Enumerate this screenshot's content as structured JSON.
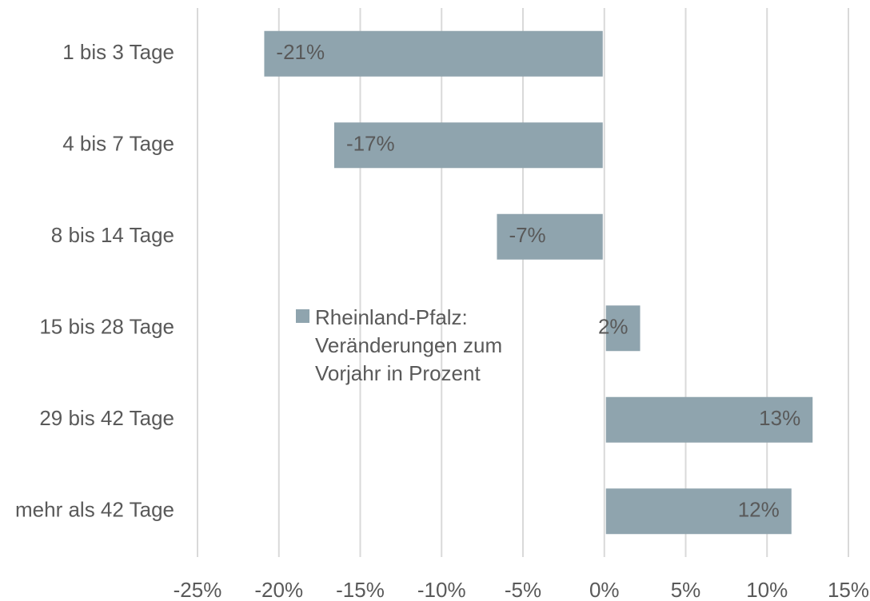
{
  "chart_data": {
    "type": "barh",
    "categories": [
      "1 bis 3 Tage",
      "4 bis 7 Tage",
      "8 bis 14 Tage",
      "15 bis 28 Tage",
      "29 bis 42 Tage",
      "mehr als 42 Tage"
    ],
    "series": [
      {
        "name": "Rheinland-Pfalz: Veränderungen zum Vorjahr in Prozent",
        "color": "#8fa4ae",
        "values": [
          -20.9,
          -16.6,
          -6.6,
          2.2,
          12.8,
          11.5
        ],
        "value_labels": [
          "-21%",
          "-17%",
          "-7%",
          "2%",
          "13%",
          "12%"
        ]
      }
    ],
    "xlim": [
      -25,
      15
    ],
    "xticks": [
      {
        "value": -25,
        "label": "-25%"
      },
      {
        "value": -20,
        "label": "-20%"
      },
      {
        "value": -15,
        "label": "-15%"
      },
      {
        "value": -10,
        "label": "-10%"
      },
      {
        "value": -5,
        "label": "-5%"
      },
      {
        "value": 0,
        "label": "0%"
      },
      {
        "value": 5,
        "label": "5%"
      },
      {
        "value": 10,
        "label": "10%"
      },
      {
        "value": 15,
        "label": "15%"
      }
    ],
    "grid": true
  }
}
